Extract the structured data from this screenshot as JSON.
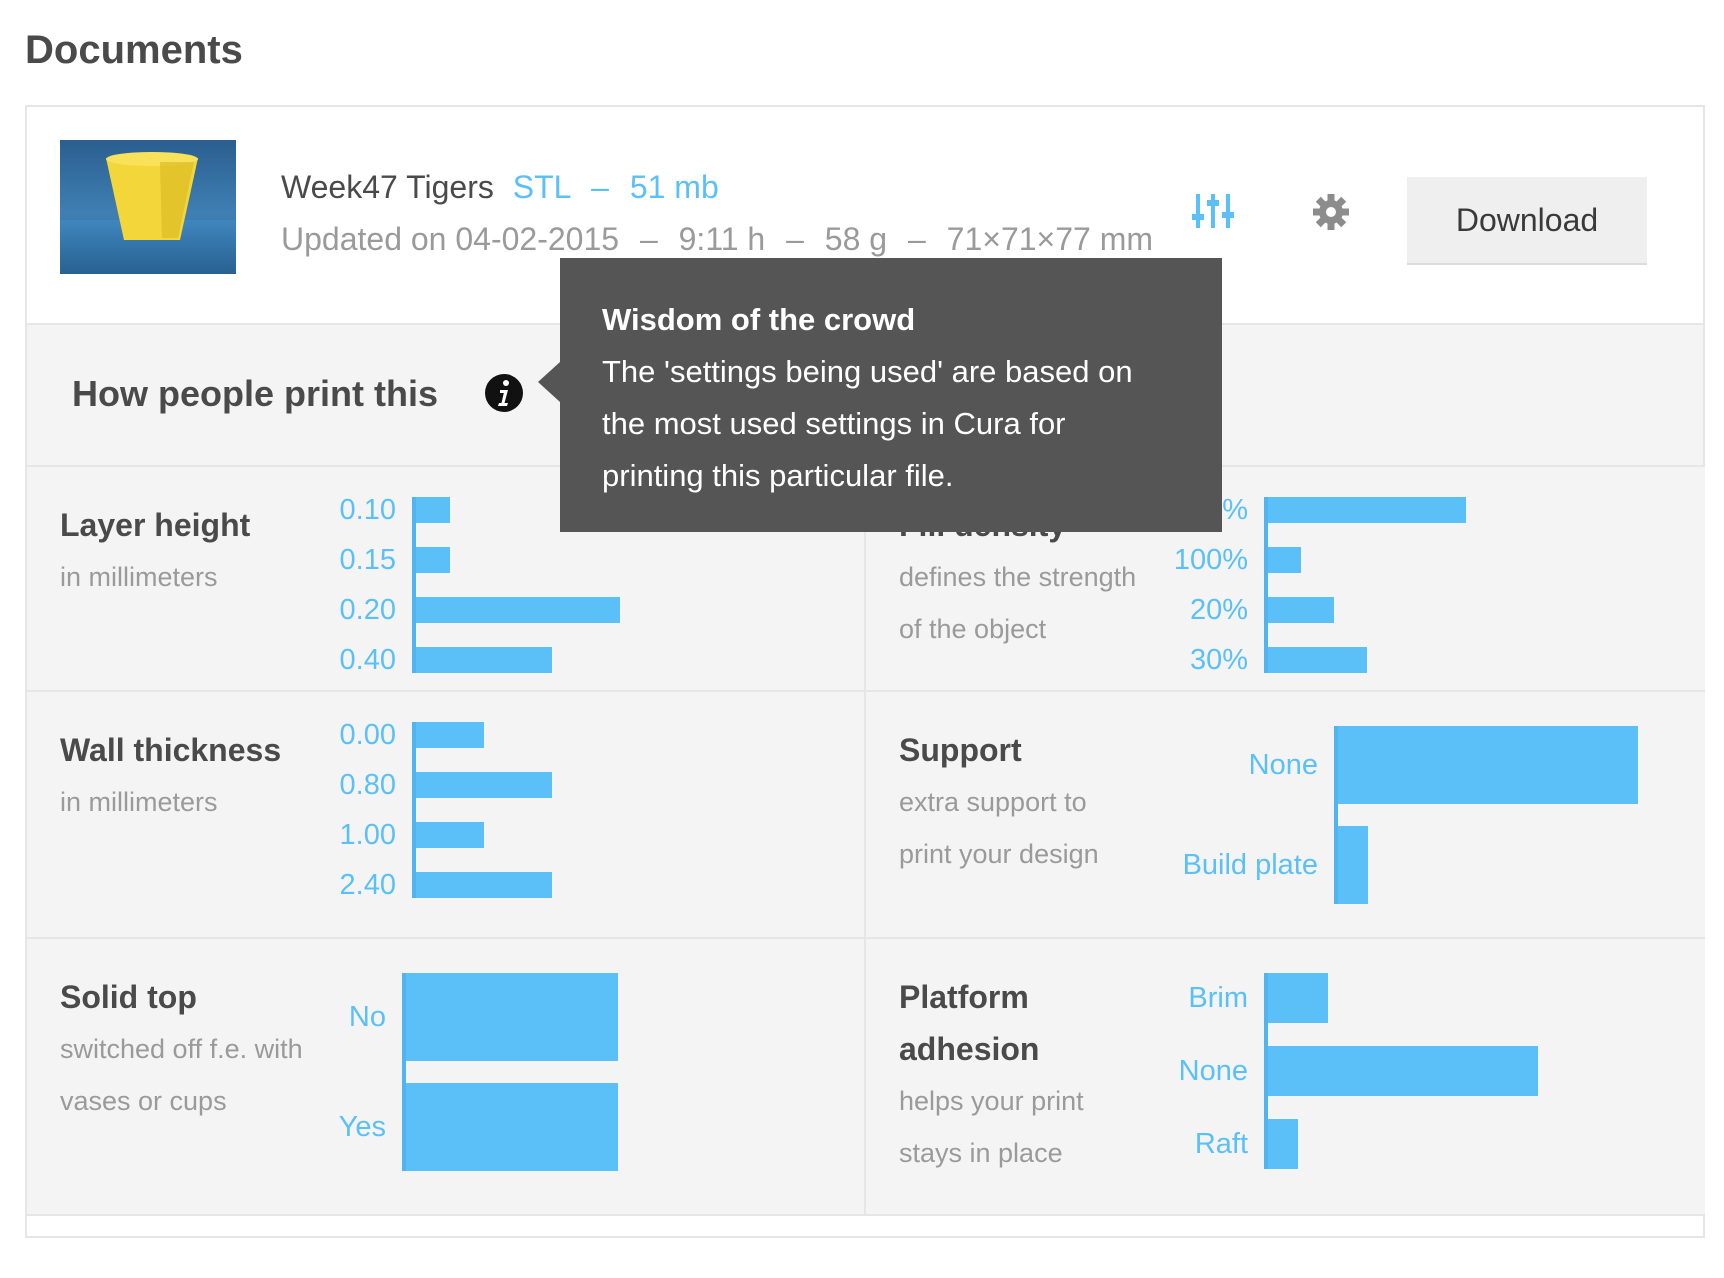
{
  "page": {
    "title": "Documents"
  },
  "file": {
    "name": "Week47 Tigers",
    "type": "STL",
    "size": "51 mb",
    "updated": "Updated on 04-02-2015",
    "print_time": "9:11 h",
    "weight": "58 g",
    "dimensions": "71×71×77 mm",
    "separator": "–"
  },
  "actions": {
    "download_label": "Download"
  },
  "how": {
    "title": "How people print this"
  },
  "tooltip": {
    "title": "Wisdom of the crowd",
    "line1": "The 'settings being used' are based on",
    "line2": "the most used settings in Cura for",
    "line3": "printing this particular file."
  },
  "settings": {
    "layer_height": {
      "title": "Layer height",
      "desc1": "in millimeters",
      "items": [
        {
          "label": "0.10",
          "value": 2
        },
        {
          "label": "0.15",
          "value": 2
        },
        {
          "label": "0.20",
          "value": 12
        },
        {
          "label": "0.40",
          "value": 8
        }
      ]
    },
    "infill": {
      "title": "Fill density",
      "desc1": "defines the strength",
      "desc2": "of the object",
      "items": [
        {
          "label": "0%",
          "value": 12
        },
        {
          "label": "100%",
          "value": 2
        },
        {
          "label": "20%",
          "value": 4
        },
        {
          "label": "30%",
          "value": 6
        }
      ]
    },
    "wall_thickness": {
      "title": "Wall thickness",
      "desc1": "in millimeters",
      "items": [
        {
          "label": "0.00",
          "value": 4
        },
        {
          "label": "0.80",
          "value": 8
        },
        {
          "label": "1.00",
          "value": 4
        },
        {
          "label": "2.40",
          "value": 8
        }
      ]
    },
    "support": {
      "title": "Support",
      "desc1": "extra support to",
      "desc2": "print your design",
      "items": [
        {
          "label": "None",
          "value": 10
        },
        {
          "label": "Build plate",
          "value": 1
        }
      ]
    },
    "solid_top": {
      "title": "Solid top",
      "desc1": "switched off f.e. with",
      "desc2": "vases or cups",
      "items": [
        {
          "label": "No",
          "value": 1
        },
        {
          "label": "Yes",
          "value": 1
        }
      ]
    },
    "platform_adhesion": {
      "title1": "Platform",
      "title2": "adhesion",
      "desc1": "helps your print",
      "desc2": "stays in place",
      "items": [
        {
          "label": "Brim",
          "value": 2
        },
        {
          "label": "None",
          "value": 9
        },
        {
          "label": "Raft",
          "value": 1
        }
      ]
    }
  },
  "colors": {
    "accent": "#5bc0f8",
    "panel": "#f4f4f4",
    "tooltip": "#555555"
  }
}
